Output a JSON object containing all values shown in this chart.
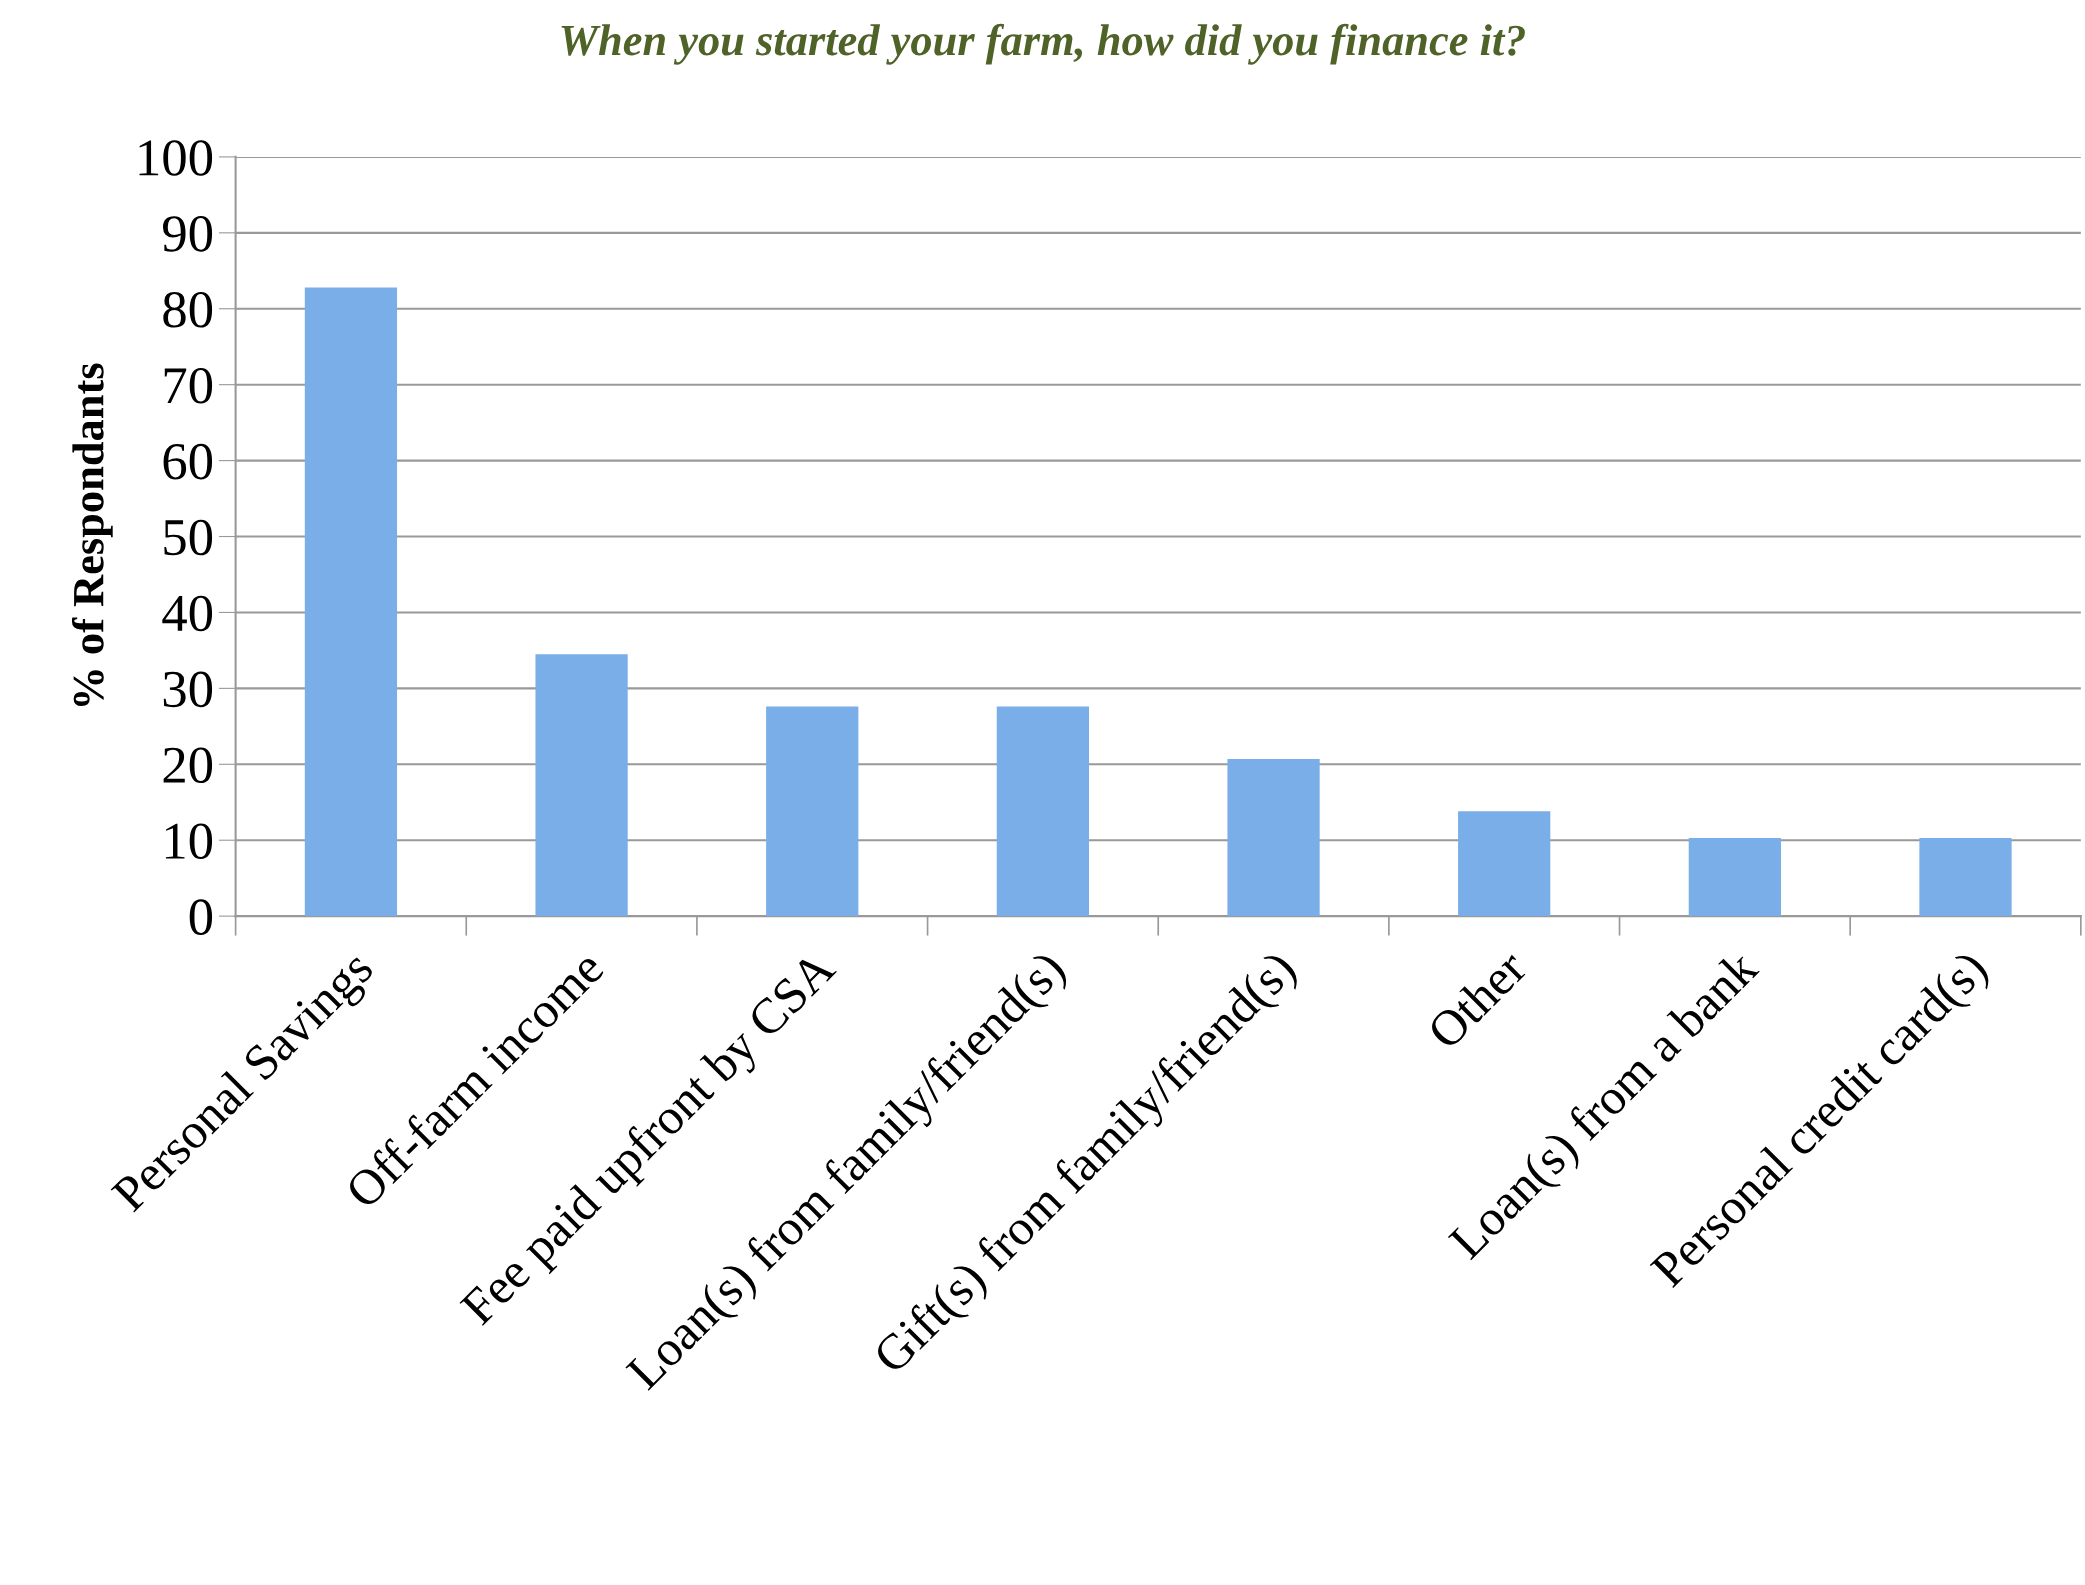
{
  "chart_data": {
    "type": "bar",
    "title": "When you started your farm, how did you finance it?",
    "ylabel": "% of Respondants",
    "categories": [
      "Personal Savings",
      "Off-farm income",
      "Fee paid upfront by CSA",
      "Loan(s) from family/friend(s)",
      "Gift(s) from family/friend(s)",
      "Other",
      "Loan(s) from a bank",
      "Personal credit card(s)"
    ],
    "values": [
      82.8,
      34.5,
      27.6,
      27.6,
      20.7,
      13.8,
      10.3,
      10.3
    ],
    "color": "#7aaee8",
    "ylim": [
      0,
      100
    ],
    "yticks": [
      0,
      10,
      20,
      30,
      40,
      50,
      60,
      70,
      80,
      90,
      100
    ],
    "grid": "y"
  }
}
